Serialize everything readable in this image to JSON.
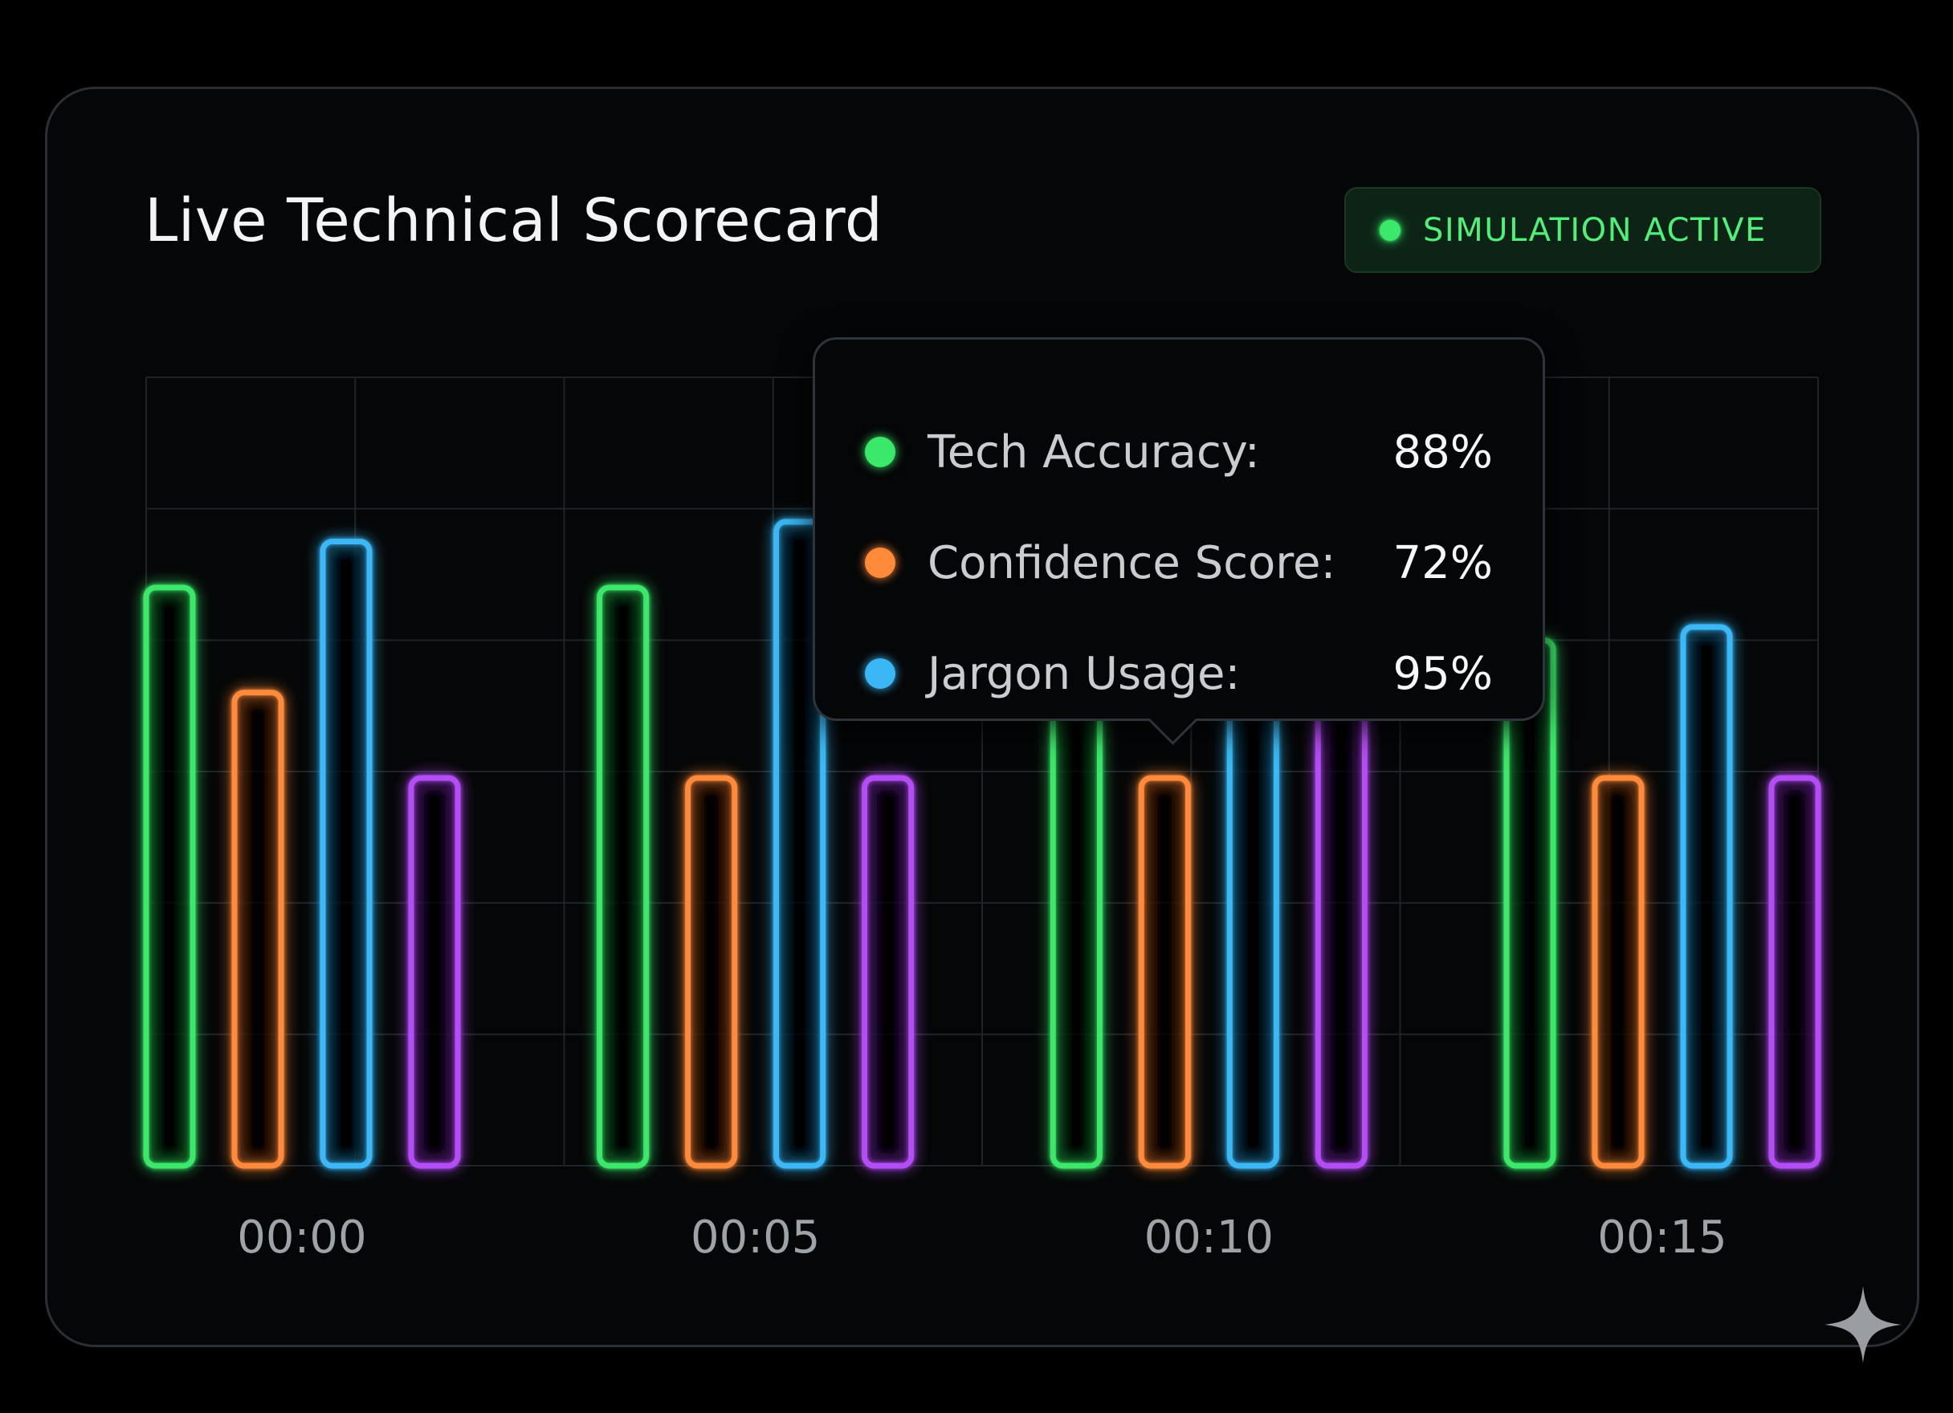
{
  "header": {
    "title": "Live Technical Scorecard"
  },
  "status": {
    "label": "SIMULATION ACTIVE",
    "color": "#3ae86a"
  },
  "tooltip": {
    "rows": [
      {
        "label": "Tech Accuracy:",
        "value": "88%",
        "color": "#3ae86a"
      },
      {
        "label": "Confidence Score:",
        "value": "72%",
        "color": "#ff8a3a"
      },
      {
        "label": "Jargon Usage:",
        "value": "95%",
        "color": "#3ab8f5"
      }
    ]
  },
  "chart_data": {
    "type": "bar",
    "categories": [
      "00:00",
      "00:05",
      "00:10",
      "00:15"
    ],
    "series": [
      {
        "color": "#3ae86a",
        "values": [
          88,
          88,
          72,
          80
        ]
      },
      {
        "color": "#ff8a3a",
        "values": [
          72,
          59,
          59,
          59
        ]
      },
      {
        "color": "#3ab8f5",
        "values": [
          95,
          98,
          72,
          82
        ]
      },
      {
        "color": "#b44df5",
        "values": [
          59,
          59,
          72,
          59
        ]
      }
    ],
    "ylim": [
      0,
      120
    ],
    "grid": true,
    "legend": "none"
  }
}
